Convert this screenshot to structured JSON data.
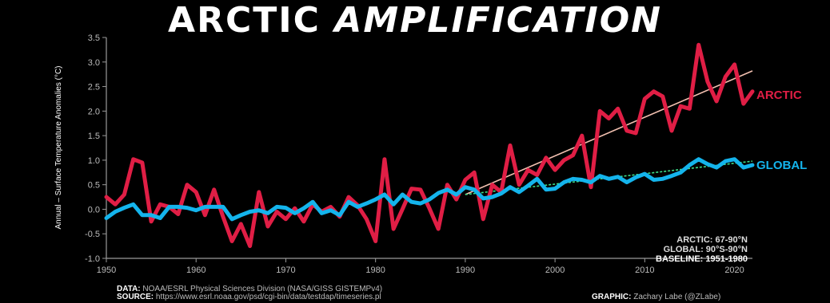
{
  "title_part1": "ARCTIC",
  "title_part2": "AMPLIFICATION",
  "colors": {
    "arctic": "#e01e45",
    "global": "#14b4ec",
    "arctic_trend": "#f2c0b0",
    "global_trend": "#3de08a"
  },
  "chart_data": {
    "type": "line",
    "ylabel": "Annual – Surface Temperature Anomalies (°C)",
    "xlabel": "",
    "xlim": [
      1950,
      2022
    ],
    "ylim": [
      -1.0,
      3.5
    ],
    "xticks": [
      1950,
      1960,
      1970,
      1980,
      1990,
      2000,
      2010,
      2020
    ],
    "yticks": [
      "-1.0",
      "-0.5",
      "0.0",
      "0.5",
      "1.0",
      "1.5",
      "2.0",
      "2.5",
      "3.0",
      "3.5"
    ],
    "x": [
      1950,
      1951,
      1952,
      1953,
      1954,
      1955,
      1956,
      1957,
      1958,
      1959,
      1960,
      1961,
      1962,
      1963,
      1964,
      1965,
      1966,
      1967,
      1968,
      1969,
      1970,
      1971,
      1972,
      1973,
      1974,
      1975,
      1976,
      1977,
      1978,
      1979,
      1980,
      1981,
      1982,
      1983,
      1984,
      1985,
      1986,
      1987,
      1988,
      1989,
      1990,
      1991,
      1992,
      1993,
      1994,
      1995,
      1996,
      1997,
      1998,
      1999,
      2000,
      2001,
      2002,
      2003,
      2004,
      2005,
      2006,
      2007,
      2008,
      2009,
      2010,
      2011,
      2012,
      2013,
      2014,
      2015,
      2016,
      2017,
      2018,
      2019,
      2020,
      2021,
      2022
    ],
    "series": [
      {
        "name": "ARCTIC",
        "values": [
          0.25,
          0.1,
          0.3,
          1.02,
          0.95,
          -0.25,
          0.1,
          0.05,
          -0.1,
          0.5,
          0.35,
          -0.12,
          0.4,
          -0.15,
          -0.65,
          -0.3,
          -0.75,
          0.35,
          -0.35,
          -0.05,
          -0.2,
          0.02,
          -0.25,
          0.1,
          -0.05,
          0.05,
          -0.15,
          0.25,
          0.08,
          -0.2,
          -0.65,
          1.02,
          -0.4,
          0.0,
          0.42,
          0.4,
          0.02,
          -0.4,
          0.5,
          0.2,
          0.6,
          0.75,
          -0.2,
          0.5,
          0.35,
          1.3,
          0.5,
          0.8,
          0.7,
          1.05,
          0.8,
          1.0,
          1.1,
          1.5,
          0.45,
          2.0,
          1.85,
          2.05,
          1.6,
          1.55,
          2.25,
          2.4,
          2.3,
          1.6,
          2.1,
          2.05,
          3.35,
          2.6,
          2.2,
          2.7,
          2.95,
          2.15,
          2.4
        ]
      },
      {
        "name": "GLOBAL",
        "values": [
          -0.18,
          -0.05,
          0.03,
          0.1,
          -0.12,
          -0.12,
          -0.18,
          0.05,
          0.05,
          0.03,
          -0.02,
          0.05,
          0.05,
          0.05,
          -0.2,
          -0.12,
          -0.05,
          -0.02,
          -0.08,
          0.05,
          0.03,
          -0.08,
          0.02,
          0.15,
          -0.08,
          -0.02,
          -0.12,
          0.15,
          0.05,
          0.12,
          0.2,
          0.3,
          0.1,
          0.3,
          0.15,
          0.12,
          0.2,
          0.33,
          0.4,
          0.3,
          0.45,
          0.4,
          0.22,
          0.25,
          0.32,
          0.45,
          0.35,
          0.48,
          0.62,
          0.4,
          0.42,
          0.55,
          0.62,
          0.6,
          0.55,
          0.68,
          0.62,
          0.66,
          0.55,
          0.65,
          0.72,
          0.6,
          0.62,
          0.68,
          0.75,
          0.9,
          1.02,
          0.92,
          0.85,
          0.98,
          1.02,
          0.85,
          0.9
        ]
      }
    ],
    "trend_lines": [
      {
        "name": "ARCTIC",
        "x": [
          1990,
          2022
        ],
        "values": [
          0.3,
          2.82
        ]
      },
      {
        "name": "GLOBAL",
        "x": [
          1990,
          2022
        ],
        "values": [
          0.3,
          0.98
        ]
      }
    ],
    "notes": [
      "ARCTIC: 67-90°N",
      "GLOBAL: 90°S-90°N",
      "BASELINE: 1951-1980"
    ]
  },
  "footer": {
    "data_label": "DATA:",
    "data_text": "NOAA/ESRL Physical Sciences Division (NASA/GISS GISTEMPv4)",
    "source_label": "SOURCE:",
    "source_text": "https://www.esrl.noaa.gov/psd/cgi-bin/data/testdap/timeseries.pl",
    "graphic_label": "GRAPHIC:",
    "graphic_text": "Zachary Labe (@ZLabe)"
  }
}
